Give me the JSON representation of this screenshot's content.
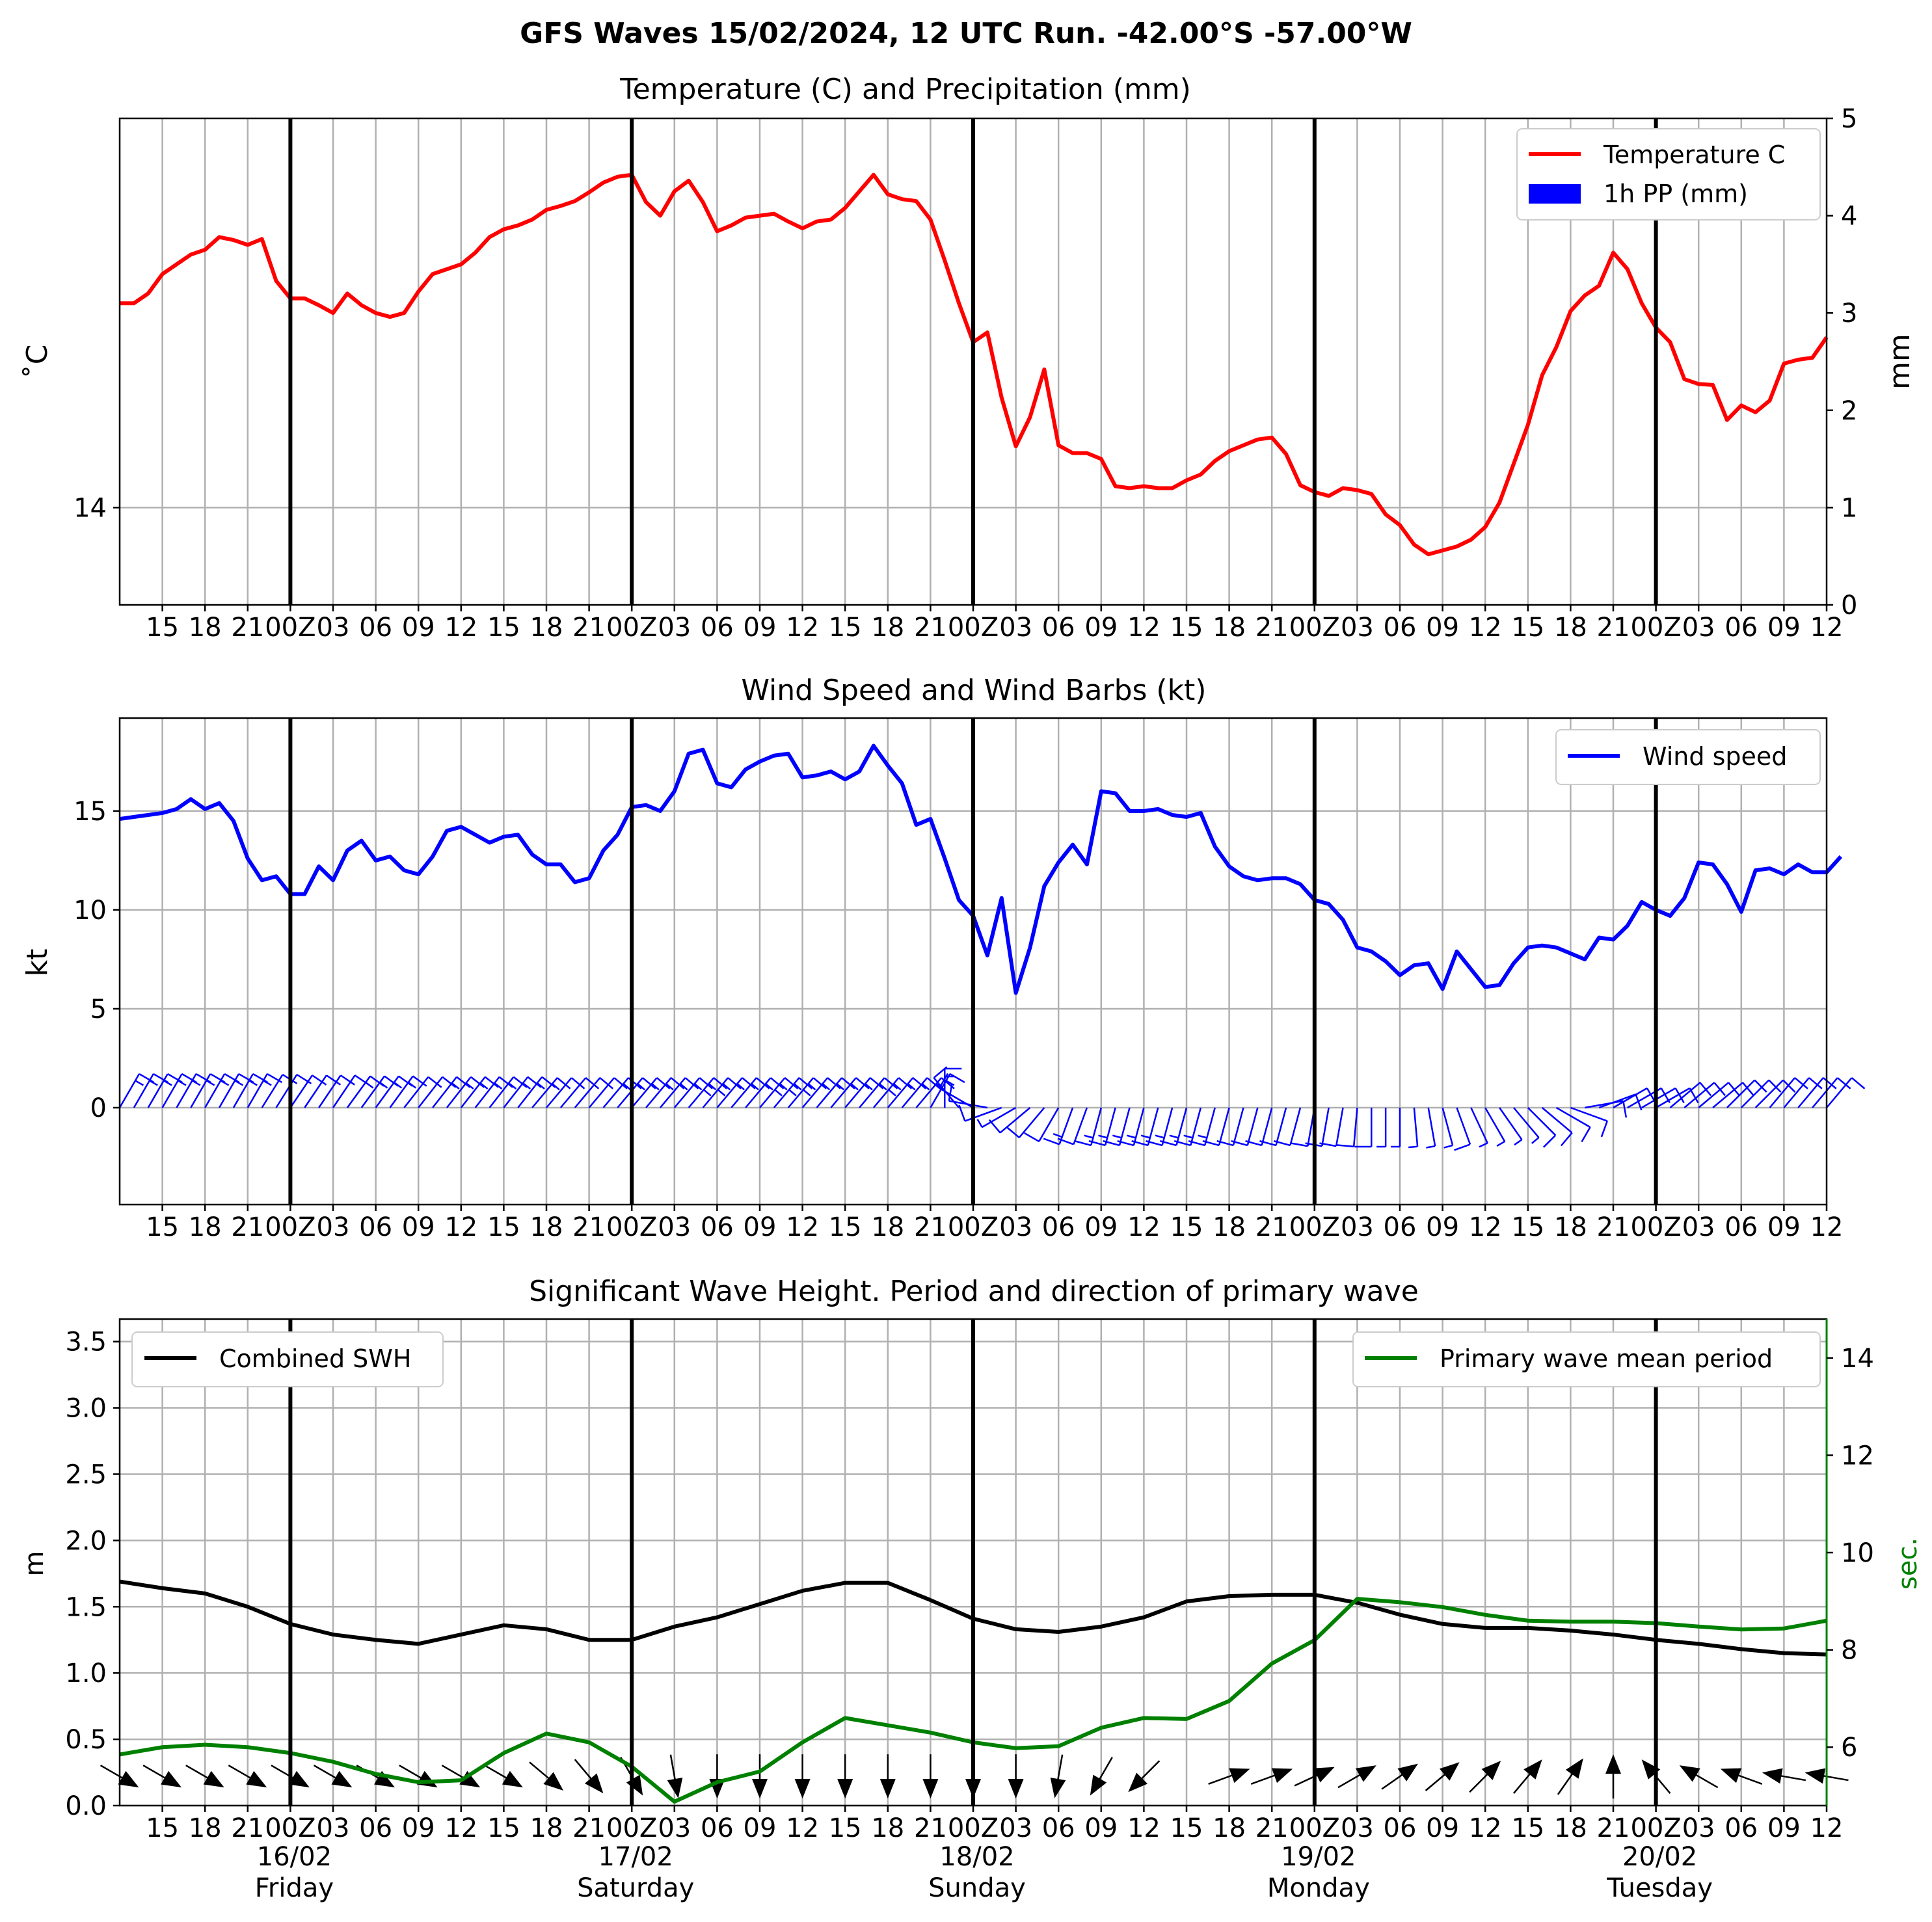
{
  "suptitle": "GFS Waves 15/02/2024, 12 UTC Run. -42.00°S -57.00°W",
  "colors": {
    "temperature": "#ff0000",
    "precip": "#0000ff",
    "wind": "#0000ff",
    "swh": "#000000",
    "period": "#008000",
    "grid": "#b0b0b0"
  },
  "time_axis": {
    "start_label": "15/02 12Z",
    "hours_total": 120,
    "hour_labels": [
      "15",
      "18",
      "21",
      "00Z",
      "03",
      "06",
      "09",
      "12",
      "15",
      "18",
      "21",
      "00Z",
      "03",
      "06",
      "09",
      "12",
      "15",
      "18",
      "21",
      "00Z",
      "03",
      "06",
      "09",
      "12",
      "15",
      "18",
      "21",
      "00Z",
      "03",
      "06",
      "09",
      "12",
      "15",
      "18",
      "21",
      "00Z",
      "03",
      "06",
      "09",
      "12"
    ],
    "day_labels": [
      {
        "date": "16/02",
        "day": "Friday"
      },
      {
        "date": "17/02",
        "day": "Saturday"
      },
      {
        "date": "18/02",
        "day": "Sunday"
      },
      {
        "date": "19/02",
        "day": "Monday"
      },
      {
        "date": "20/02",
        "day": "Tuesday"
      }
    ]
  },
  "chart_data": [
    {
      "type": "line",
      "title": "Temperature (C) and Precipitation (mm)",
      "ylabel": "$^\\circ$C",
      "ylabel_display": "˚C",
      "y2label": "mm",
      "yticks": [
        "14"
      ],
      "y2ticks": [
        "0",
        "1",
        "2",
        "3",
        "4",
        "5"
      ],
      "y2lim": [
        0,
        5
      ],
      "legend": {
        "position": "top-right",
        "entries": [
          "Temperature C",
          "1h PP (mm)"
        ]
      },
      "series": [
        {
          "name": "Temperature C",
          "axis": "secondary-scale",
          "values": [
            3.1,
            3.1,
            3.2,
            3.4,
            3.5,
            3.6,
            3.65,
            3.78,
            3.75,
            3.7,
            3.76,
            3.33,
            3.15,
            3.15,
            3.08,
            3.0,
            3.2,
            3.08,
            3.0,
            2.96,
            3.0,
            3.22,
            3.4,
            3.45,
            3.5,
            3.62,
            3.78,
            3.86,
            3.9,
            3.96,
            4.06,
            4.1,
            4.15,
            4.24,
            4.34,
            4.4,
            4.42,
            4.14,
            4.0,
            4.25,
            4.36,
            4.14,
            3.84,
            3.9,
            3.98,
            4.0,
            4.02,
            3.94,
            3.87,
            3.94,
            3.96,
            4.08,
            4.25,
            4.42,
            4.22,
            4.17,
            4.15,
            3.96,
            3.54,
            3.1,
            2.7,
            2.8,
            2.13,
            1.63,
            1.93,
            2.42,
            1.64,
            1.56,
            1.56,
            1.5,
            1.22,
            1.2,
            1.22,
            1.2,
            1.2,
            1.28,
            1.34,
            1.48,
            1.58,
            1.64,
            1.7,
            1.72,
            1.55,
            1.23,
            1.16,
            1.12,
            1.2,
            1.18,
            1.14,
            0.93,
            0.82,
            0.62,
            0.52,
            0.56,
            0.6,
            0.67,
            0.8,
            1.05,
            1.45,
            1.85,
            2.36,
            2.65,
            3.02,
            3.18,
            3.28,
            3.62,
            3.45,
            3.1,
            2.85,
            2.7,
            2.32,
            2.27,
            2.26,
            1.9,
            2.05,
            1.98,
            2.1,
            2.48,
            2.52,
            2.54,
            2.75
          ]
        },
        {
          "name": "1h PP (mm)",
          "axis": "precip",
          "values": []
        }
      ]
    },
    {
      "type": "line",
      "title": "Wind Speed and Wind Barbs (kt)",
      "ylabel": "kt",
      "yticks": [
        "0",
        "5",
        "10",
        "15"
      ],
      "ylim": [
        -4.9,
        19.7
      ],
      "legend": {
        "position": "top-right",
        "entries": [
          "Wind speed"
        ]
      },
      "series": [
        {
          "name": "Wind speed",
          "values": [
            14.6,
            14.7,
            14.8,
            14.9,
            15.1,
            15.6,
            15.1,
            15.4,
            14.5,
            12.6,
            11.5,
            11.7,
            10.8,
            10.8,
            12.2,
            11.5,
            13.0,
            13.5,
            12.5,
            12.7,
            12.0,
            11.8,
            12.7,
            14.0,
            14.2,
            13.8,
            13.4,
            13.7,
            13.8,
            12.8,
            12.3,
            12.3,
            11.4,
            11.6,
            13.0,
            13.8,
            15.2,
            15.3,
            15.0,
            16.0,
            17.9,
            18.1,
            16.4,
            16.2,
            17.1,
            17.5,
            17.8,
            17.9,
            16.7,
            16.8,
            17.0,
            16.6,
            17.0,
            18.3,
            17.3,
            16.4,
            14.3,
            14.6,
            12.6,
            10.5,
            9.7,
            7.7,
            10.6,
            5.8,
            8.1,
            11.2,
            12.4,
            13.3,
            12.3,
            16.0,
            15.9,
            15.0,
            15.0,
            15.1,
            14.8,
            14.7,
            14.9,
            13.2,
            12.2,
            11.7,
            11.5,
            11.6,
            11.6,
            11.3,
            10.5,
            10.3,
            9.5,
            8.1,
            7.9,
            7.4,
            6.7,
            7.2,
            7.3,
            6.0,
            7.9,
            7.0,
            6.1,
            6.2,
            7.3,
            8.1,
            8.2,
            8.1,
            7.8,
            7.5,
            8.6,
            8.5,
            9.2,
            10.4,
            10.0,
            9.7,
            10.6,
            12.4,
            12.3,
            11.3,
            9.9,
            12.0,
            12.1,
            11.8,
            12.3,
            11.9,
            11.9,
            12.7
          ]
        }
      ],
      "barbs_from_direction_deg": [
        30,
        30,
        30,
        30,
        30,
        30,
        30,
        30,
        30,
        30,
        32,
        32,
        34,
        34,
        34,
        34,
        36,
        36,
        36,
        36,
        38,
        38,
        38,
        38,
        38,
        38,
        38,
        38,
        38,
        40,
        40,
        40,
        40,
        40,
        40,
        40,
        40,
        40,
        40,
        40,
        40,
        40,
        40,
        40,
        40,
        40,
        40,
        40,
        40,
        40,
        40,
        40,
        40,
        40,
        40,
        40,
        40,
        30,
        0,
        320,
        300,
        280,
        250,
        240,
        230,
        220,
        210,
        200,
        200,
        195,
        195,
        195,
        195,
        195,
        195,
        195,
        195,
        195,
        195,
        195,
        195,
        195,
        195,
        195,
        190,
        190,
        190,
        185,
        180,
        180,
        180,
        175,
        170,
        165,
        160,
        155,
        150,
        145,
        140,
        135,
        130,
        120,
        110,
        80,
        70,
        60,
        60,
        60,
        60,
        50,
        50,
        50,
        50,
        45,
        45,
        45,
        40,
        40,
        40,
        40,
        40
      ]
    },
    {
      "type": "line",
      "title": "Significant Wave Height. Period and direction of primary wave",
      "ylabel": "m",
      "y2label": "sec.",
      "ylim": [
        0,
        3.67
      ],
      "yticks": [
        "0.0",
        "0.5",
        "1.0",
        "1.5",
        "2.0",
        "2.5",
        "3.0",
        "3.5"
      ],
      "y2lim": [
        4.8,
        14.8
      ],
      "y2ticks": [
        "6",
        "8",
        "10",
        "12",
        "14"
      ],
      "legend_left": {
        "position": "top-left",
        "entries": [
          "Combined SWH"
        ]
      },
      "legend_right": {
        "position": "top-right",
        "entries": [
          "Primary wave mean period"
        ]
      },
      "series": [
        {
          "name": "Combined SWH",
          "x_hours": [
            0,
            3,
            6,
            9,
            12,
            15,
            18,
            21,
            24,
            27,
            30,
            33,
            36,
            39,
            42,
            45,
            48,
            51,
            54,
            57,
            60,
            63,
            66,
            69,
            72,
            75,
            78,
            81,
            84,
            87,
            90,
            93,
            96,
            99,
            102,
            105,
            108,
            111,
            114,
            117,
            120
          ],
          "values": [
            1.69,
            1.64,
            1.6,
            1.5,
            1.37,
            1.29,
            1.25,
            1.22,
            1.29,
            1.36,
            1.33,
            1.25,
            1.25,
            1.35,
            1.42,
            1.52,
            1.62,
            1.68,
            1.68,
            1.55,
            1.41,
            1.33,
            1.31,
            1.35,
            1.42,
            1.54,
            1.58,
            1.59,
            1.59,
            1.53,
            1.44,
            1.37,
            1.34,
            1.34,
            1.32,
            1.29,
            1.25,
            1.22,
            1.18,
            1.15,
            1.14
          ]
        },
        {
          "name": "Primary wave mean period",
          "x_hours": [
            0,
            3,
            6,
            9,
            12,
            15,
            18,
            21,
            24,
            27,
            30,
            33,
            36,
            39,
            42,
            45,
            48,
            51,
            54,
            57,
            60,
            63,
            66,
            69,
            72,
            75,
            78,
            81,
            84,
            87,
            90,
            93,
            96,
            99,
            102,
            105,
            108,
            111,
            114,
            117,
            120
          ],
          "values": [
            5.85,
            6.0,
            6.05,
            6.0,
            5.88,
            5.7,
            5.45,
            5.28,
            5.32,
            5.88,
            6.28,
            6.1,
            5.6,
            4.88,
            5.28,
            5.5,
            6.1,
            6.6,
            6.45,
            6.3,
            6.1,
            5.98,
            6.02,
            6.4,
            6.6,
            6.58,
            6.95,
            7.72,
            8.2,
            9.05,
            8.98,
            8.88,
            8.72,
            8.6,
            8.58,
            8.58,
            8.55,
            8.48,
            8.42,
            8.44,
            8.6
          ]
        }
      ],
      "wave_arrows": {
        "x_hours": [
          0,
          3,
          6,
          9,
          12,
          15,
          18,
          21,
          24,
          27,
          30,
          33,
          36,
          39,
          42,
          45,
          48,
          51,
          54,
          57,
          60,
          63,
          66,
          69,
          72,
          75,
          78,
          81,
          84,
          87,
          90,
          93,
          96,
          99,
          102,
          105,
          108,
          111,
          114,
          117,
          120
        ],
        "direction_to_deg": [
          120,
          120,
          120,
          120,
          120,
          120,
          120,
          120,
          120,
          120,
          130,
          140,
          150,
          170,
          180,
          180,
          180,
          180,
          180,
          180,
          180,
          180,
          190,
          210,
          225,
          -1,
          70,
          70,
          65,
          60,
          55,
          50,
          45,
          40,
          35,
          0,
          320,
          300,
          290,
          280,
          280
        ]
      }
    }
  ]
}
